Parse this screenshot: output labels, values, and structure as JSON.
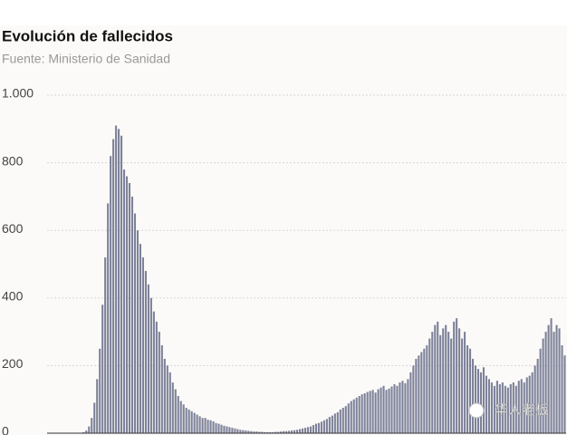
{
  "chart_data": {
    "type": "bar",
    "title": "Evolución de fallecidos",
    "subtitle": "Fuente: Ministerio de Sanidad",
    "watermark": "华人老板",
    "color": "#7d8199",
    "grid": true,
    "ylim": [
      0,
      1000
    ],
    "yticks": [
      0,
      200,
      400,
      600,
      800,
      {
        "value": 1000,
        "label": "1.000"
      }
    ],
    "values": [
      0,
      0,
      0,
      0,
      0,
      0,
      0,
      0,
      0,
      0,
      0,
      0,
      0,
      3,
      8,
      20,
      45,
      90,
      160,
      250,
      380,
      520,
      680,
      820,
      870,
      910,
      900,
      880,
      780,
      760,
      740,
      700,
      650,
      600,
      560,
      520,
      480,
      440,
      400,
      360,
      330,
      300,
      260,
      220,
      200,
      180,
      150,
      130,
      110,
      95,
      85,
      75,
      70,
      65,
      60,
      55,
      50,
      45,
      45,
      40,
      38,
      35,
      30,
      28,
      25,
      22,
      20,
      18,
      16,
      14,
      12,
      10,
      9,
      8,
      7,
      6,
      5,
      5,
      4,
      4,
      3,
      3,
      3,
      3,
      4,
      4,
      5,
      6,
      6,
      7,
      8,
      9,
      10,
      12,
      14,
      16,
      18,
      20,
      24,
      28,
      30,
      34,
      38,
      42,
      48,
      52,
      58,
      62,
      70,
      75,
      80,
      88,
      95,
      100,
      105,
      110,
      115,
      118,
      122,
      125,
      128,
      120,
      130,
      135,
      140,
      128,
      132,
      138,
      145,
      140,
      150,
      155,
      148,
      160,
      180,
      200,
      220,
      230,
      240,
      250,
      260,
      280,
      300,
      320,
      330,
      290,
      310,
      320,
      300,
      280,
      330,
      340,
      310,
      280,
      300,
      260,
      250,
      220,
      200,
      190,
      180,
      195,
      170,
      160,
      150,
      140,
      155,
      145,
      150,
      140,
      135,
      145,
      150,
      140,
      155,
      160,
      150,
      165,
      170,
      180,
      200,
      220,
      250,
      280,
      300,
      320,
      340,
      300,
      320,
      310,
      260,
      230
    ]
  }
}
